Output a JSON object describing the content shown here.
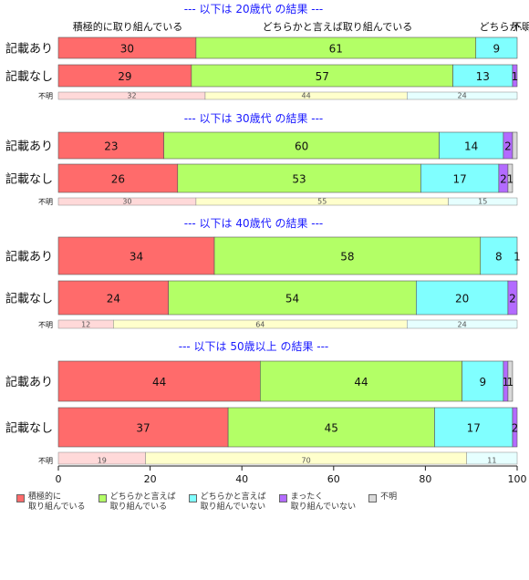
{
  "chart_data": {
    "type": "bar",
    "orientation": "horizontal",
    "stacked": true,
    "xlim": [
      0,
      100
    ],
    "x_ticks": [
      "0",
      "20",
      "40",
      "60",
      "80",
      "100"
    ],
    "column_headers": [
      "積極的に取り組んでいる",
      "どちらかと言えば取り組んでいる",
      "どちらか…",
      "不明"
    ],
    "categories": [
      "積極的に取り組んでいる",
      "どちらかと言えば取り組んでいる",
      "どちらかと言えば取り組んでいない",
      "まったく取り組んでいない",
      "不明"
    ],
    "legend_labels": [
      "積極的に\n取り組んでいる",
      "どちらかと言えば\n取り組んでいる",
      "どちらかと言えば\n取り組んでいない",
      "まったく\n取り組んでいない",
      "不明"
    ],
    "colors": [
      "#ff6b6b",
      "#b3ff66",
      "#80ffff",
      "#b36bff",
      "#d9d9d9"
    ],
    "unknown_colors": [
      "#ffd9d9",
      "#ffffcc",
      "#e6ffff"
    ],
    "groups": [
      {
        "title": "--- 以下は 20歳代 の結果 ---",
        "bars": [
          {
            "label": "記載あり",
            "values": [
              30,
              61,
              9,
              0,
              0
            ],
            "labels": [
              "30",
              "61",
              "9",
              "",
              ""
            ]
          },
          {
            "label": "記載なし",
            "values": [
              29,
              57,
              13,
              1,
              0
            ],
            "labels": [
              "29",
              "57",
              "13",
              "1",
              ""
            ]
          }
        ],
        "unknown": {
          "label": "不明",
          "values": [
            32,
            44,
            24
          ]
        }
      },
      {
        "title": "--- 以下は 30歳代 の結果 ---",
        "bars": [
          {
            "label": "記載あり",
            "values": [
              23,
              60,
              14,
              2,
              1
            ],
            "labels": [
              "23",
              "60",
              "14",
              "2",
              ""
            ]
          },
          {
            "label": "記載なし",
            "values": [
              26,
              53,
              17,
              2,
              1
            ],
            "labels": [
              "26",
              "53",
              "17",
              "2",
              "1"
            ]
          }
        ],
        "unknown": {
          "label": "不明",
          "values": [
            30,
            55,
            15
          ]
        }
      },
      {
        "title": "--- 以下は 40歳代 の結果 ---",
        "bars": [
          {
            "label": "記載あり",
            "values": [
              34,
              58,
              8,
              1,
              0
            ],
            "labels": [
              "34",
              "58",
              "8",
              "1",
              ""
            ]
          },
          {
            "label": "記載なし",
            "values": [
              24,
              54,
              20,
              2,
              0
            ],
            "labels": [
              "24",
              "54",
              "20",
              "2",
              ""
            ]
          }
        ],
        "unknown": {
          "label": "不明",
          "values": [
            12,
            64,
            24
          ]
        }
      },
      {
        "title": "--- 以下は 50歳以上 の結果 ---",
        "bars": [
          {
            "label": "記載あり",
            "values": [
              44,
              44,
              9,
              1,
              1
            ],
            "labels": [
              "44",
              "44",
              "9",
              "1",
              "1"
            ]
          },
          {
            "label": "記載なし",
            "values": [
              37,
              45,
              17,
              2,
              0
            ],
            "labels": [
              "37",
              "45",
              "17",
              "2",
              ""
            ]
          }
        ],
        "unknown": {
          "label": "不明",
          "values": [
            19,
            70,
            11
          ]
        }
      }
    ]
  }
}
